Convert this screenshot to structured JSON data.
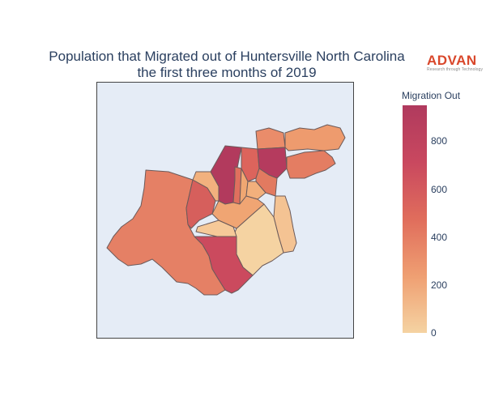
{
  "title_line1": "Population that Migrated out of Huntersville North Carolina",
  "title_line2": "the first three months of 2019",
  "logo": {
    "wordmark": "ADVAN",
    "tagline": "Research through Technology",
    "color": "#d9472b"
  },
  "colorbar": {
    "title": "Migration Out",
    "min": 0,
    "max": 950,
    "ticks": [
      "0",
      "200",
      "400",
      "600",
      "800"
    ],
    "colors": [
      "#f5d3a2",
      "#ef9f72",
      "#e06d5c",
      "#c9485f",
      "#b03a5e"
    ]
  },
  "map": {
    "background": "#e5ecf6",
    "border_color": "#6b5a5a"
  }
}
